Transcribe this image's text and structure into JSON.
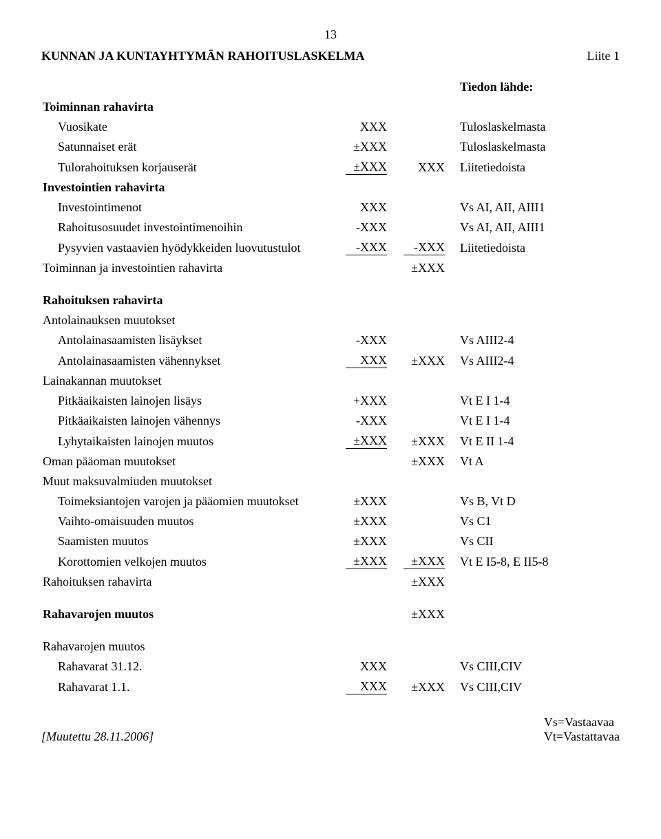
{
  "page_number": "13",
  "title": "KUNNAN JA KUNTAYHTYMÄN RAHOITUSLASKELMA",
  "annex": "Liite 1",
  "col_header": "Tiedon lähde:",
  "sections": {
    "op_cf": {
      "heading": "Toiminnan rahavirta",
      "r1": {
        "label": "Vuosikate",
        "a1": "XXX",
        "src": "Tuloslaskelmasta"
      },
      "r2": {
        "label": "Satunnaiset erät",
        "a1": "±XXX",
        "src": "Tuloslaskelmasta"
      },
      "r3": {
        "label": "Tulorahoituksen korjauserät",
        "a1": "±XXX",
        "a2": "XXX",
        "src": "Liitetiedoista"
      }
    },
    "inv_cf": {
      "heading": "Investointien rahavirta",
      "r1": {
        "label": "Investointimenot",
        "a1": "XXX",
        "src": "Vs AI, AII, AIII1"
      },
      "r2": {
        "label": "Rahoitusosuudet investointimenoihin",
        "a1": "-XXX",
        "src": "Vs AI, AII, AIII1"
      },
      "r3": {
        "label": "Pysyvien vastaavien hyödykkeiden luovutustulot",
        "a1": "-XXX",
        "a2": "-XXX",
        "src": "Liitetiedoista"
      },
      "sum": {
        "label": "Toiminnan ja investointien rahavirta",
        "a2": "±XXX"
      }
    },
    "fin_cf": {
      "heading": "Rahoituksen rahavirta",
      "loan_change": "Antolainauksen muutokset",
      "l1": {
        "label": "Antolainasaamisten lisäykset",
        "a1": "-XXX",
        "src": "Vs AIII2-4"
      },
      "l2": {
        "label": "Antolainasaamisten vähennykset",
        "a1": "XXX",
        "a2": "±XXX",
        "src": "Vs AIII2-4"
      },
      "stock_change": "Lainakannan muutokset",
      "s1": {
        "label": "Pitkäaikaisten lainojen lisäys",
        "a1": "+XXX",
        "src": "Vt E I 1-4"
      },
      "s2": {
        "label": "Pitkäaikaisten lainojen vähennys",
        "a1": "-XXX",
        "src": "Vt E I 1-4"
      },
      "s3": {
        "label": "Lyhytaikaisten lainojen muutos",
        "a1": "±XXX",
        "a2": "±XXX",
        "src": "Vt E II 1-4"
      },
      "equity": {
        "label": "Oman pääoman muutokset",
        "a2": "±XXX",
        "src": "Vt A"
      },
      "liq_change": "Muut maksuvalmiuden muutokset",
      "m1": {
        "label": "Toimeksiantojen varojen ja pääomien muutokset",
        "a1": "±XXX",
        "src": "Vs B, Vt D"
      },
      "m2": {
        "label": "Vaihto-omaisuuden muutos",
        "a1": "±XXX",
        "src": "Vs C1"
      },
      "m3": {
        "label": "Saamisten muutos",
        "a1": "±XXX",
        "src": "Vs CII"
      },
      "m4": {
        "label": "Korottomien velkojen muutos",
        "a1": "±XXX",
        "a2": "±XXX",
        "src": "Vt E I5-8, E II5-8"
      },
      "sum": {
        "label": "Rahoituksen rahavirta",
        "a2": "±XXX"
      }
    },
    "cash_change_bold": {
      "label": "Rahavarojen muutos",
      "a2": "±XXX"
    },
    "cash_detail": {
      "heading": "Rahavarojen muutos",
      "r1": {
        "label": "Rahavarat 31.12.",
        "a1": "XXX",
        "src": "Vs CIII,CIV"
      },
      "r2": {
        "label": "Rahavarat 1.1.",
        "a1": "XXX",
        "a2": "±XXX",
        "src": "Vs CIII,CIV"
      }
    }
  },
  "footer": {
    "mutation": "[Muutettu 28.11.2006]",
    "legend1": "Vs=Vastaavaa",
    "legend2": "Vt=Vastattavaa"
  }
}
